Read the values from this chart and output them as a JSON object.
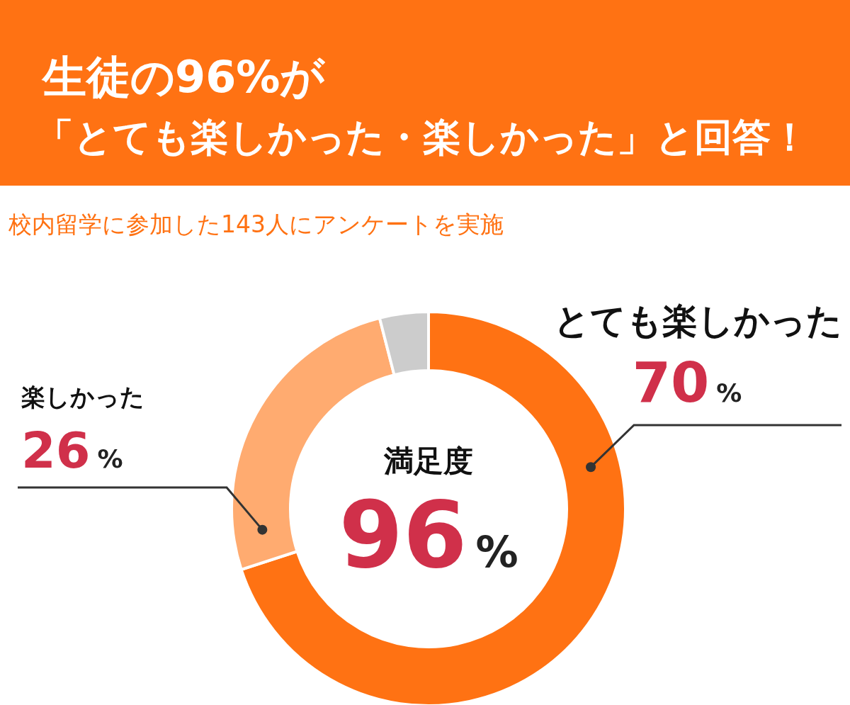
{
  "chart_data": {
    "type": "donut",
    "title": "生徒の96%が",
    "subtitle": "「とても楽しかった・楽しかった」と回答！",
    "annotations": [
      "校内留学に参加した143人にアンケートを実施",
      "満足度",
      "96%"
    ],
    "categories": [
      "とても楽しかった",
      "楽しかった",
      null
    ],
    "values": [
      70,
      26,
      4
    ],
    "colors": [
      "#ff7213",
      "#ffab70",
      "#cccccc"
    ],
    "value_labels": [
      "70%",
      "26%",
      null
    ]
  }
}
